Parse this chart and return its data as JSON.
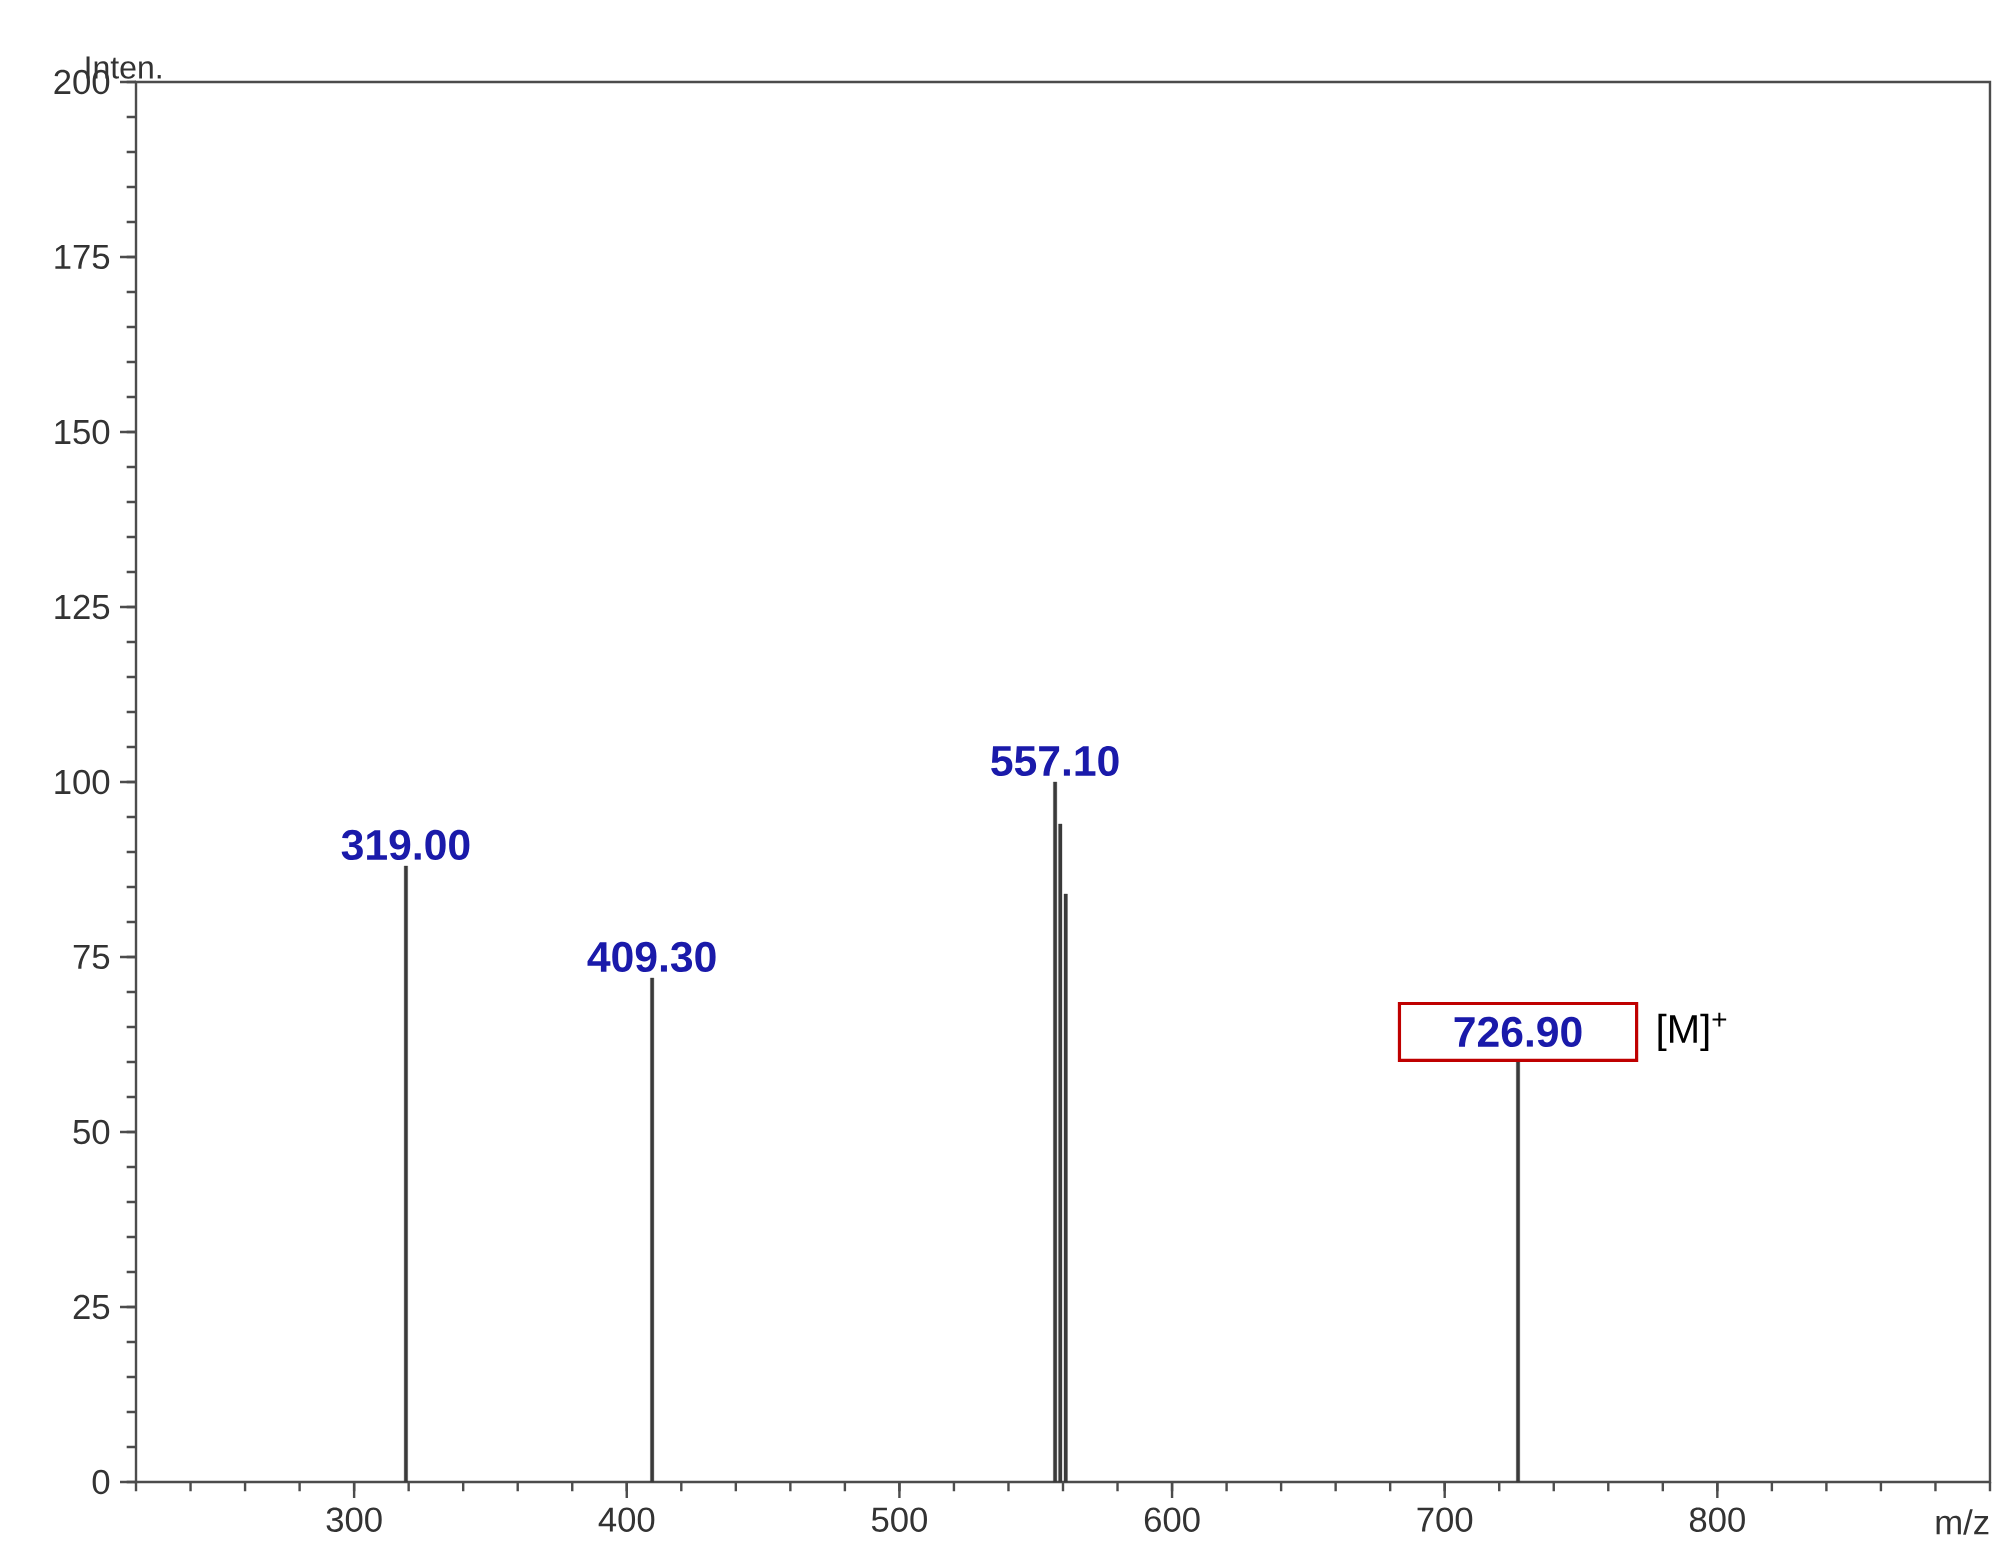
{
  "chart_data": {
    "type": "bar",
    "xlabel": "m/z",
    "ylabel": "Inten.",
    "x": [
      319.0,
      409.3,
      557.1,
      559.0,
      561.0,
      726.9
    ],
    "values": [
      88,
      72,
      100,
      94,
      84,
      60
    ],
    "color": "#3a3a3a",
    "xlim": [
      220,
      900
    ],
    "xticks": [
      300,
      400,
      500,
      600,
      700,
      800
    ],
    "ylim": [
      0,
      200
    ],
    "yticks": [
      0,
      25,
      50,
      75,
      100,
      125,
      150,
      175,
      200
    ],
    "annotations": [
      {
        "text": "319.00",
        "x": 319.0,
        "y": 88
      },
      {
        "text": "409.30",
        "x": 409.3,
        "y": 72
      },
      {
        "text": "557.10",
        "x": 557.1,
        "y": 100
      },
      {
        "text": "726.90",
        "x": 726.9,
        "y": 60
      },
      "[M]$^{+}$"
    ]
  }
}
